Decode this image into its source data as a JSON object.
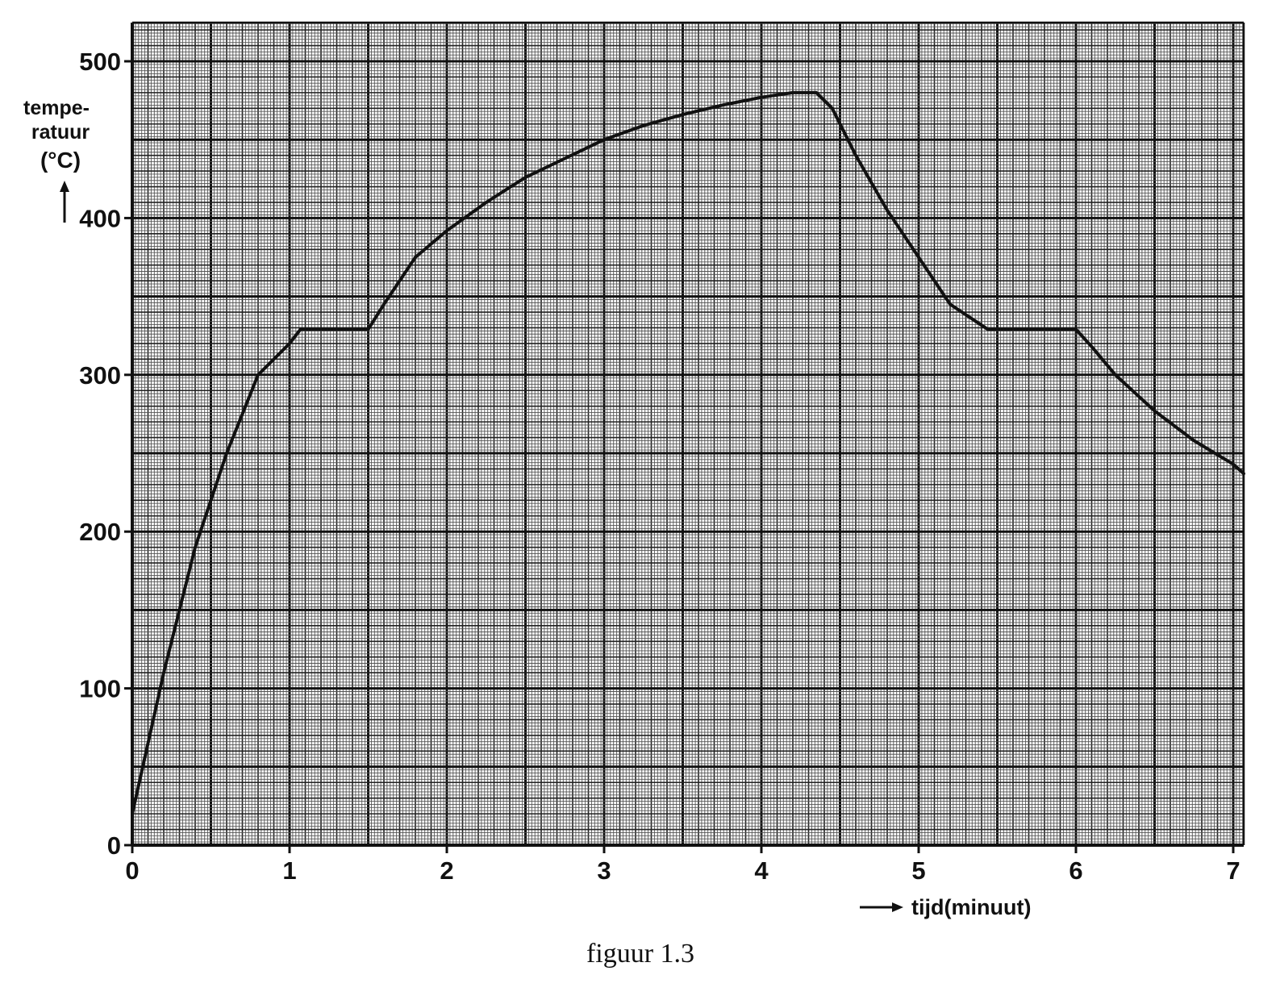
{
  "chart_data": {
    "type": "line",
    "ylabel": [
      "tempe-",
      "ratuur",
      "(°C)"
    ],
    "xlabel": "tijd(minuut)",
    "caption": "figuur 1.3",
    "xlim": [
      0,
      7.1
    ],
    "ylim": [
      0,
      525
    ],
    "x_ticks": [
      0,
      1,
      2,
      3,
      4,
      5,
      6,
      7
    ],
    "y_ticks": [
      0,
      100,
      200,
      300,
      400,
      500
    ],
    "x_tick_labels": [
      "0",
      "1",
      "2",
      "3",
      "4",
      "5",
      "6",
      "7"
    ],
    "y_tick_labels": [
      "0",
      "100",
      "200",
      "300",
      "400",
      "500"
    ],
    "grid": true,
    "series": [
      {
        "x": [
          0,
          0.2,
          0.4,
          0.6,
          0.8,
          1.0,
          1.07,
          1.5,
          1.6,
          1.8,
          2.0,
          2.25,
          2.5,
          2.75,
          3.0,
          3.25,
          3.5,
          3.75,
          4.0,
          4.2,
          4.35,
          4.45,
          4.6,
          4.8,
          5.0,
          5.2,
          5.44,
          6.0,
          6.1,
          6.25,
          6.5,
          6.75,
          7.0,
          7.1
        ],
        "y": [
          20,
          110,
          190,
          250,
          300,
          320,
          329,
          329,
          345,
          375,
          392,
          410,
          426,
          438,
          450,
          459,
          466,
          472,
          477,
          480,
          480,
          470,
          440,
          405,
          375,
          345,
          329,
          329,
          318,
          300,
          277,
          258,
          243,
          237
        ]
      }
    ]
  }
}
